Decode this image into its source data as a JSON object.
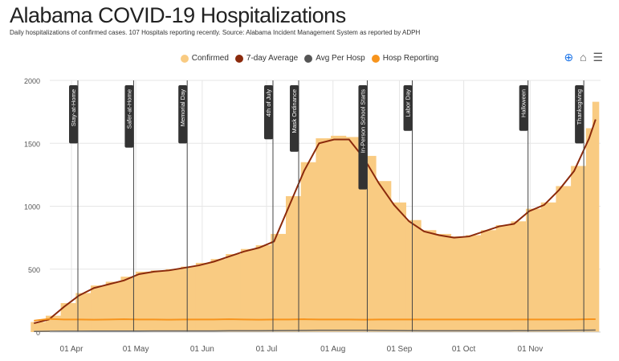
{
  "title": "Alabama COVID-19 Hospitalizations",
  "subtitle": "Daily hospitalizations of confirmed cases. 107 Hospitals reporting recently. Source: Alabama Incident Management System as reported by ADPH",
  "toolbar": {
    "icons": [
      "zoom-in-icon",
      "home-icon",
      "menu-icon"
    ]
  },
  "chart_data": {
    "type": "bar",
    "title": "Alabama COVID-19 Hospitalizations",
    "ylim": [
      0,
      2000
    ],
    "yticks": [
      "0",
      "500",
      "1000",
      "1500",
      "2000"
    ],
    "xticks": [
      {
        "date": "2020-04-01",
        "label": "01 Apr"
      },
      {
        "date": "2020-05-01",
        "label": "01 May"
      },
      {
        "date": "2020-06-01",
        "label": "01 Jun"
      },
      {
        "date": "2020-07-01",
        "label": "01 Jul"
      },
      {
        "date": "2020-08-01",
        "label": "01 Aug"
      },
      {
        "date": "2020-09-01",
        "label": "01 Sep"
      },
      {
        "date": "2020-10-01",
        "label": "01 Oct"
      },
      {
        "date": "2020-11-01",
        "label": "01 Nov"
      }
    ],
    "grid": true,
    "legend_placement": "top-center",
    "legend": [
      {
        "name": "Confirmed",
        "color": "#f9cb82"
      },
      {
        "name": "7-day Average",
        "color": "#8b2a0c"
      },
      {
        "name": "Avg Per Hosp",
        "color": "#555555"
      },
      {
        "name": "Hosp Reporting",
        "color": "#f7941d"
      }
    ],
    "x": [
      "2020-03-13",
      "2020-03-20",
      "2020-03-27",
      "2020-04-03",
      "2020-04-10",
      "2020-04-17",
      "2020-04-24",
      "2020-05-01",
      "2020-05-08",
      "2020-05-15",
      "2020-05-22",
      "2020-05-29",
      "2020-06-05",
      "2020-06-12",
      "2020-06-19",
      "2020-06-26",
      "2020-07-03",
      "2020-07-10",
      "2020-07-17",
      "2020-07-24",
      "2020-07-31",
      "2020-08-07",
      "2020-08-14",
      "2020-08-21",
      "2020-08-28",
      "2020-09-04",
      "2020-09-11",
      "2020-09-18",
      "2020-09-25",
      "2020-10-02",
      "2020-10-09",
      "2020-10-16",
      "2020-10-23",
      "2020-10-30",
      "2020-11-06",
      "2020-11-13",
      "2020-11-20",
      "2020-11-27",
      "2020-11-30"
    ],
    "series": [
      {
        "name": "Confirmed",
        "type": "bar",
        "values": [
          80,
          130,
          230,
          310,
          370,
          400,
          440,
          480,
          490,
          500,
          520,
          550,
          580,
          620,
          660,
          690,
          780,
          1080,
          1350,
          1540,
          1560,
          1550,
          1400,
          1200,
          1030,
          890,
          810,
          780,
          760,
          770,
          810,
          850,
          880,
          980,
          1030,
          1160,
          1320,
          1620,
          1830
        ]
      },
      {
        "name": "7-day Average",
        "type": "line",
        "values": [
          70,
          100,
          200,
          290,
          350,
          380,
          410,
          460,
          480,
          490,
          510,
          530,
          560,
          600,
          640,
          670,
          720,
          1000,
          1280,
          1500,
          1530,
          1530,
          1380,
          1180,
          1010,
          880,
          800,
          770,
          750,
          760,
          800,
          840,
          860,
          960,
          1010,
          1130,
          1280,
          1540,
          1690
        ]
      },
      {
        "name": "Avg Per Hosp",
        "type": "line",
        "values": [
          5,
          6,
          7,
          7,
          8,
          8,
          8,
          8,
          9,
          9,
          9,
          9,
          9,
          10,
          10,
          10,
          11,
          12,
          13,
          14,
          14,
          14,
          14,
          13,
          12,
          11,
          10,
          10,
          10,
          10,
          10,
          10,
          11,
          11,
          12,
          13,
          14,
          15,
          16
        ]
      },
      {
        "name": "Hosp Reporting",
        "type": "line",
        "values": [
          90,
          105,
          100,
          100,
          98,
          100,
          102,
          100,
          100,
          98,
          100,
          100,
          100,
          102,
          100,
          98,
          100,
          100,
          102,
          100,
          100,
          100,
          98,
          100,
          100,
          100,
          100,
          100,
          100,
          100,
          100,
          100,
          100,
          100,
          100,
          100,
          100,
          102,
          102
        ]
      }
    ],
    "annotations": [
      {
        "date": "2020-04-04",
        "label": "Stay-at-Home"
      },
      {
        "date": "2020-04-30",
        "label": "Safer-at-Home"
      },
      {
        "date": "2020-05-25",
        "label": "Memorial Day"
      },
      {
        "date": "2020-07-04",
        "label": "4th of July"
      },
      {
        "date": "2020-07-16",
        "label": "Mask Ordinance"
      },
      {
        "date": "2020-08-17",
        "label": "In-Person School Starts"
      },
      {
        "date": "2020-09-07",
        "label": "Labor Day"
      },
      {
        "date": "2020-10-31",
        "label": "Halloween"
      },
      {
        "date": "2020-11-26",
        "label": "Thanksgiving"
      }
    ]
  }
}
